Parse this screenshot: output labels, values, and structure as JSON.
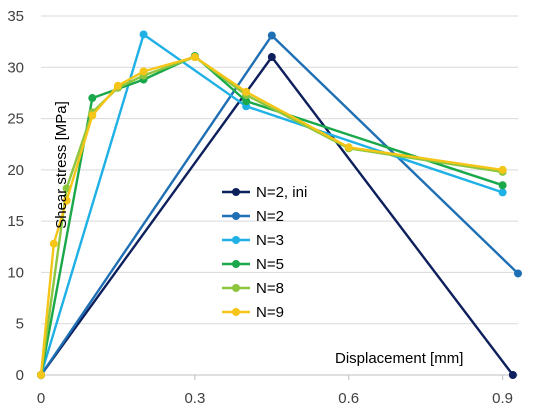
{
  "chart_data": {
    "type": "line",
    "xlabel": "Displacement [mm]",
    "ylabel": "Shear stress [MPa]",
    "xlim": [
      0,
      0.93
    ],
    "ylim": [
      0,
      35
    ],
    "xticks": [
      0,
      0.3,
      0.6,
      0.9
    ],
    "xtick_labels": [
      "0",
      "0.3",
      "0.6",
      "0.9"
    ],
    "yticks": [
      0,
      5,
      10,
      15,
      20,
      25,
      30,
      35
    ],
    "ytick_labels": [
      "0",
      "5",
      "10",
      "15",
      "20",
      "25",
      "30",
      "35"
    ],
    "grid": "horizontal",
    "legend_position": "center",
    "series": [
      {
        "name": "N=2, ini",
        "color": "#0d1f5c",
        "x": [
          0,
          0.45,
          0.92
        ],
        "y": [
          0,
          31.0,
          0
        ]
      },
      {
        "name": "N=2",
        "color": "#1f6fb4",
        "x": [
          0,
          0.45,
          0.93
        ],
        "y": [
          0,
          33.1,
          9.9
        ]
      },
      {
        "name": "N=3",
        "color": "#1fb0e6",
        "x": [
          0,
          0.2,
          0.4,
          0.9
        ],
        "y": [
          0,
          33.2,
          26.2,
          17.8
        ]
      },
      {
        "name": "N=5",
        "color": "#1aa84a",
        "x": [
          0,
          0.1,
          0.2,
          0.3,
          0.4,
          0.9
        ],
        "y": [
          0,
          27.0,
          28.8,
          31.1,
          26.7,
          18.5
        ]
      },
      {
        "name": "N=8",
        "color": "#8cc63f",
        "x": [
          0,
          0.05,
          0.1,
          0.15,
          0.2,
          0.3,
          0.4,
          0.6,
          0.9
        ],
        "y": [
          0,
          18.2,
          25.6,
          28.0,
          29.2,
          31.0,
          27.3,
          22.1,
          19.8
        ]
      },
      {
        "name": "N=9",
        "color": "#f5c518",
        "x": [
          0,
          0.025,
          0.05,
          0.1,
          0.15,
          0.2,
          0.3,
          0.4,
          0.6,
          0.9
        ],
        "y": [
          0,
          12.8,
          17.0,
          25.3,
          28.2,
          29.6,
          31.0,
          27.6,
          22.2,
          20.0
        ]
      }
    ]
  }
}
